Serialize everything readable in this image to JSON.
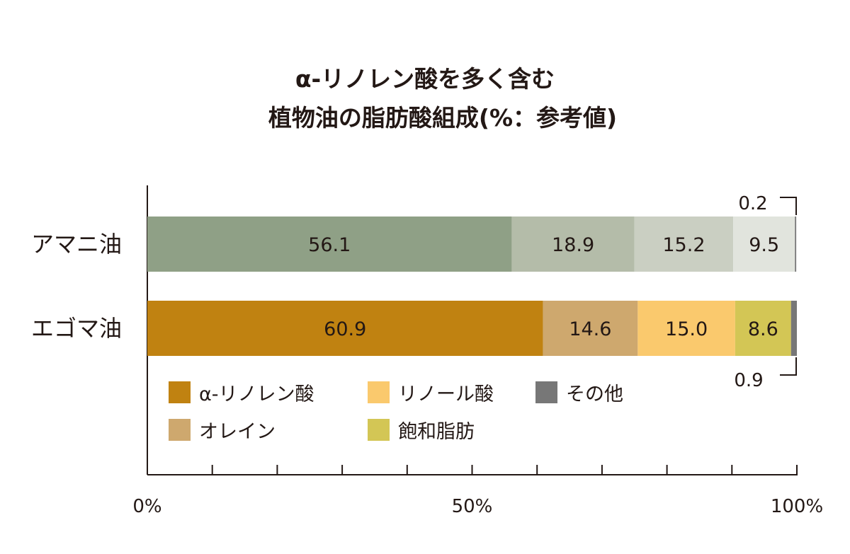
{
  "chart_data": {
    "type": "bar",
    "orientation": "horizontal",
    "stacked": true,
    "title_lines": [
      "α-リノレン酸を多く含む",
      "植物油の脂肪酸組成(%：参考値)"
    ],
    "categories": [
      "アマニ油",
      "エゴマ油"
    ],
    "series": [
      {
        "name": "α-リノレン酸",
        "values": [
          56.1,
          60.9
        ],
        "labels": [
          "56.1",
          "60.9"
        ],
        "colors": [
          "#8fa086",
          "#c08211"
        ]
      },
      {
        "name": "オレイン",
        "values": [
          18.9,
          14.6
        ],
        "labels": [
          "18.9",
          "14.6"
        ],
        "colors": [
          "#b4bca9",
          "#cea86e"
        ]
      },
      {
        "name": "リノール酸",
        "values": [
          15.2,
          15.0
        ],
        "labels": [
          "15.2",
          "15.0"
        ],
        "colors": [
          "#cacfc2",
          "#fac96d"
        ]
      },
      {
        "name": "飽和脂肪",
        "values": [
          9.5,
          8.6
        ],
        "labels": [
          "9.5",
          "8.6"
        ],
        "colors": [
          "#e1e4dd",
          "#d3c655"
        ]
      },
      {
        "name": "その他",
        "values": [
          0.2,
          0.9
        ],
        "labels": [
          "0.2",
          "0.9"
        ],
        "colors": [
          "#777777",
          "#777777"
        ]
      }
    ],
    "xlim": [
      0,
      100
    ],
    "xticks": [
      0,
      10,
      20,
      30,
      40,
      50,
      60,
      70,
      80,
      90,
      100
    ],
    "xtick_labels": [
      {
        "value": 0,
        "label": "0%"
      },
      {
        "value": 50,
        "label": "50%"
      },
      {
        "value": 100,
        "label": "100%"
      }
    ],
    "legend": {
      "placement": "bottom-left, inside plot",
      "rows": [
        [
          {
            "label": "α-リノレン酸",
            "color": "#c08211"
          },
          {
            "label": "リノール酸",
            "color": "#fac96d"
          },
          {
            "label": "その他",
            "color": "#777777"
          }
        ],
        [
          {
            "label": "オレイン",
            "color": "#cea86e"
          },
          {
            "label": "飽和脂肪",
            "color": "#d3c655"
          }
        ]
      ]
    },
    "callouts": [
      {
        "category": "アマニ油",
        "series": "その他",
        "label": "0.2",
        "side": "above"
      },
      {
        "category": "エゴマ油",
        "series": "その他",
        "label": "0.9",
        "side": "below"
      }
    ],
    "grid": false,
    "axis_color": "#231815"
  }
}
